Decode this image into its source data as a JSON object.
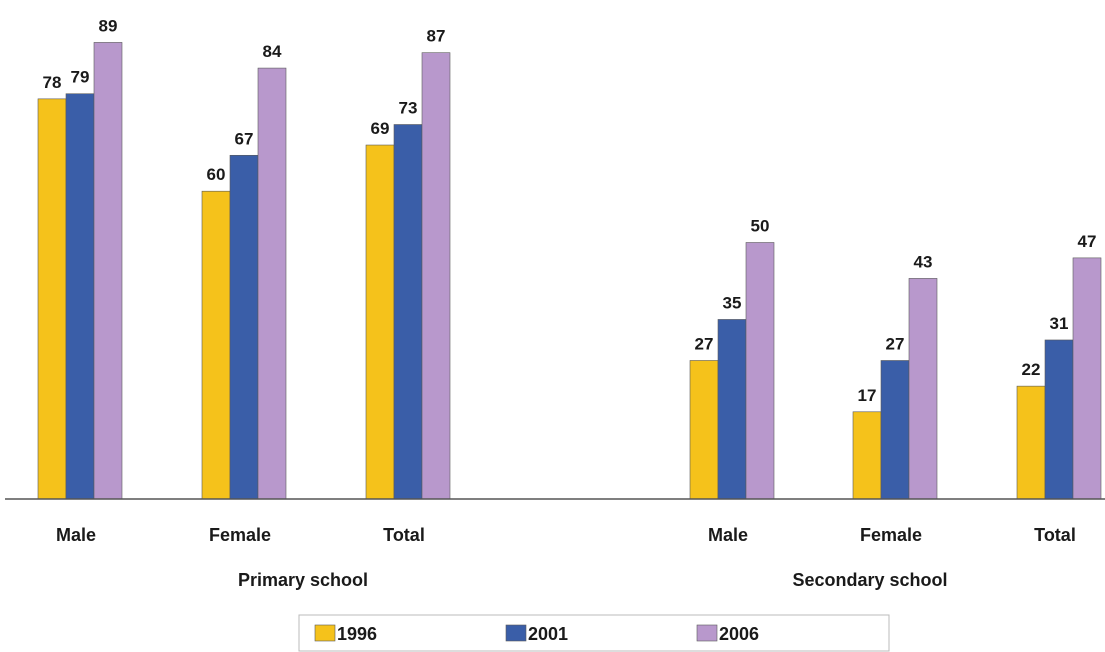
{
  "chart_data": {
    "type": "bar",
    "groups": [
      {
        "label": "Primary school",
        "categories": [
          "Male",
          "Female",
          "Total"
        ]
      },
      {
        "label": "Secondary school",
        "categories": [
          "Male",
          "Female",
          "Total"
        ]
      }
    ],
    "series": [
      {
        "name": "1996",
        "color": "#f5c21b",
        "values": [
          78,
          60,
          69,
          27,
          17,
          22
        ]
      },
      {
        "name": "2001",
        "color": "#3a5ea8",
        "values": [
          79,
          67,
          73,
          35,
          27,
          31
        ]
      },
      {
        "name": "2006",
        "color": "#b898cc",
        "values": [
          89,
          84,
          87,
          50,
          43,
          47
        ]
      }
    ],
    "ylim": [
      0,
      100
    ],
    "grid": false,
    "legend_position": "bottom"
  }
}
